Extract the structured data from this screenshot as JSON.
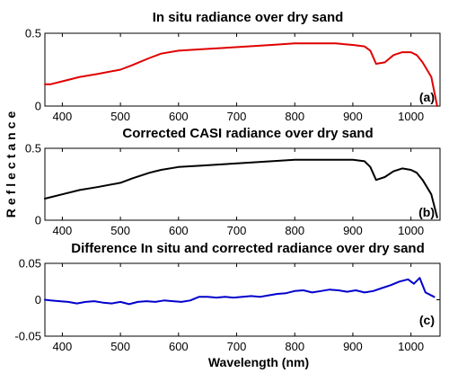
{
  "figure": {
    "ylabel": "Reflectance",
    "xlabel": "Wavelength (nm)"
  },
  "chart_data": [
    {
      "type": "line",
      "title": "In situ radiance over dry sand",
      "panel_label": "(a)",
      "xlim": [
        370,
        1050
      ],
      "ylim": [
        0,
        0.5
      ],
      "xticks": [
        400,
        500,
        600,
        700,
        800,
        900,
        1000
      ],
      "xtick_labels": [
        "400",
        "500",
        "600",
        "700",
        "800",
        "900",
        "1000"
      ],
      "yticks": [
        0,
        0.5
      ],
      "ytick_labels": [
        "0",
        "0.5"
      ],
      "series": [
        {
          "color": "#e00000",
          "x": [
            370,
            380,
            400,
            430,
            460,
            500,
            520,
            550,
            570,
            600,
            640,
            680,
            720,
            760,
            800,
            840,
            870,
            900,
            920,
            930,
            940,
            955,
            970,
            985,
            1000,
            1010,
            1020,
            1035,
            1045
          ],
          "y": [
            0.15,
            0.15,
            0.17,
            0.2,
            0.22,
            0.25,
            0.28,
            0.33,
            0.36,
            0.38,
            0.39,
            0.4,
            0.41,
            0.42,
            0.43,
            0.43,
            0.43,
            0.42,
            0.41,
            0.38,
            0.29,
            0.3,
            0.35,
            0.37,
            0.37,
            0.35,
            0.3,
            0.2,
            0.0
          ]
        }
      ]
    },
    {
      "type": "line",
      "title": "Corrected CASI radiance over dry sand",
      "panel_label": "(b)",
      "xlim": [
        370,
        1050
      ],
      "ylim": [
        0,
        0.5
      ],
      "xticks": [
        400,
        500,
        600,
        700,
        800,
        900,
        1000
      ],
      "xtick_labels": [
        "400",
        "500",
        "600",
        "700",
        "800",
        "900",
        "1000"
      ],
      "yticks": [
        0,
        0.5
      ],
      "ytick_labels": [
        "0",
        "0.5"
      ],
      "series": [
        {
          "color": "#000000",
          "x": [
            370,
            380,
            400,
            430,
            460,
            500,
            520,
            550,
            570,
            600,
            640,
            680,
            720,
            760,
            800,
            840,
            870,
            900,
            920,
            930,
            940,
            955,
            970,
            985,
            1000,
            1010,
            1020,
            1035,
            1045
          ],
          "y": [
            0.15,
            0.16,
            0.18,
            0.21,
            0.23,
            0.26,
            0.29,
            0.33,
            0.35,
            0.37,
            0.38,
            0.39,
            0.4,
            0.41,
            0.42,
            0.42,
            0.42,
            0.42,
            0.41,
            0.37,
            0.28,
            0.3,
            0.34,
            0.36,
            0.35,
            0.33,
            0.28,
            0.18,
            0.02
          ]
        }
      ]
    },
    {
      "type": "line",
      "title": "Difference In situ and corrected radiance over dry sand",
      "panel_label": "(c)",
      "xlim": [
        370,
        1050
      ],
      "ylim": [
        -0.05,
        0.05
      ],
      "xticks": [
        400,
        500,
        600,
        700,
        800,
        900,
        1000
      ],
      "xtick_labels": [
        "400",
        "500",
        "600",
        "700",
        "800",
        "900",
        "1000"
      ],
      "yticks": [
        -0.05,
        0,
        0.05
      ],
      "ytick_labels": [
        "-0.05",
        "0",
        "0.05"
      ],
      "series": [
        {
          "color": "#0000cc",
          "x": [
            370,
            380,
            395,
            410,
            425,
            440,
            455,
            470,
            485,
            500,
            515,
            530,
            545,
            560,
            575,
            590,
            605,
            620,
            635,
            650,
            665,
            680,
            695,
            710,
            725,
            740,
            755,
            770,
            785,
            800,
            815,
            830,
            845,
            860,
            875,
            890,
            905,
            920,
            935,
            950,
            965,
            980,
            995,
            1005,
            1015,
            1025,
            1040
          ],
          "y": [
            0.0,
            -0.001,
            -0.002,
            -0.003,
            -0.005,
            -0.003,
            -0.002,
            -0.004,
            -0.005,
            -0.003,
            -0.006,
            -0.003,
            -0.002,
            -0.003,
            -0.001,
            -0.002,
            -0.003,
            -0.001,
            0.004,
            0.004,
            0.003,
            0.004,
            0.003,
            0.004,
            0.005,
            0.004,
            0.006,
            0.008,
            0.009,
            0.012,
            0.013,
            0.01,
            0.012,
            0.014,
            0.013,
            0.011,
            0.013,
            0.01,
            0.012,
            0.016,
            0.02,
            0.025,
            0.028,
            0.022,
            0.03,
            0.01,
            0.004
          ]
        }
      ]
    }
  ]
}
